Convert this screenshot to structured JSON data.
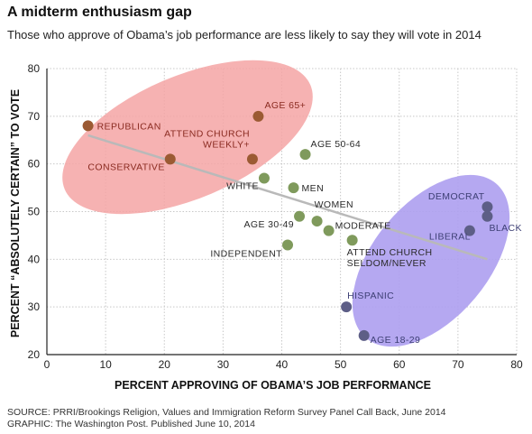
{
  "title": "A midterm enthusiasm gap",
  "subtitle": "Those who approve of Obama’s job performance are less likely to say they will vote in 2014",
  "source": "SOURCE: PRRI/Brookings Religion, Values and Immigration Reform Survey Panel Call Back, June 2014",
  "graphic_credit": "GRAPHIC: The Washington Post. Published June 10, 2014",
  "colors": {
    "republican_group": "#9b5a33",
    "middle_group": "#7f9a5c",
    "democrat_group": "#5d5e86",
    "red_oval": "#f4a4a4",
    "blue_oval": "#ad9ef0",
    "trend_line": "#b9b9b9",
    "label_red": "#8a2b21",
    "label_dark": "#2a2a2a",
    "label_blue": "#3d3f74"
  },
  "chart_data": {
    "type": "scatter",
    "title": "A midterm enthusiasm gap",
    "subtitle": "Those who approve of Obama’s job performance are less likely to say they will vote in 2014",
    "xlabel": "PERCENT APPROVING OF OBAMA’S JOB PERFORMANCE",
    "ylabel": "PERCENT “ABSOLUTELY CERTAIN” TO VOTE",
    "xlim": [
      0,
      80
    ],
    "ylim": [
      20,
      80
    ],
    "xticks": [
      0,
      10,
      20,
      30,
      40,
      50,
      60,
      70,
      80
    ],
    "yticks": [
      20,
      30,
      40,
      50,
      60,
      70,
      80
    ],
    "grid": true,
    "trend_line": [
      [
        7,
        66
      ],
      [
        75,
        40
      ]
    ],
    "points": [
      {
        "label": "REPUBLICAN",
        "x": 7,
        "y": 68,
        "group": "republican"
      },
      {
        "label": "CONSERVATIVE",
        "x": 21,
        "y": 61,
        "group": "republican"
      },
      {
        "label": "AGE 65+",
        "x": 36,
        "y": 70,
        "group": "republican"
      },
      {
        "label": "ATTEND CHURCH\nWEEKLY+",
        "x": 35,
        "y": 61,
        "group": "republican"
      },
      {
        "label": "AGE 50-64",
        "x": 44,
        "y": 62,
        "group": "middle"
      },
      {
        "label": "WHITE",
        "x": 37,
        "y": 57,
        "group": "middle"
      },
      {
        "label": "MEN",
        "x": 42,
        "y": 55,
        "group": "middle"
      },
      {
        "label": "AGE 30-49",
        "x": 43,
        "y": 49,
        "group": "middle"
      },
      {
        "label": "WOMEN",
        "x": 46,
        "y": 48,
        "group": "middle"
      },
      {
        "label": "MODERATE",
        "x": 48,
        "y": 46,
        "group": "middle"
      },
      {
        "label": "INDEPENDENT",
        "x": 41,
        "y": 43,
        "group": "middle"
      },
      {
        "label": "ATTEND CHURCH\nSELDOM/NEVER",
        "x": 52,
        "y": 44,
        "group": "middle"
      },
      {
        "label": "DEMOCRAT",
        "x": 75,
        "y": 51,
        "group": "democrat"
      },
      {
        "label": "BLACK",
        "x": 75,
        "y": 49,
        "group": "democrat"
      },
      {
        "label": "LIBERAL",
        "x": 72,
        "y": 46,
        "group": "democrat"
      },
      {
        "label": "HISPANIC",
        "x": 51,
        "y": 30,
        "group": "democrat"
      },
      {
        "label": "AGE 18-29",
        "x": 54,
        "y": 24,
        "group": "democrat"
      }
    ]
  }
}
